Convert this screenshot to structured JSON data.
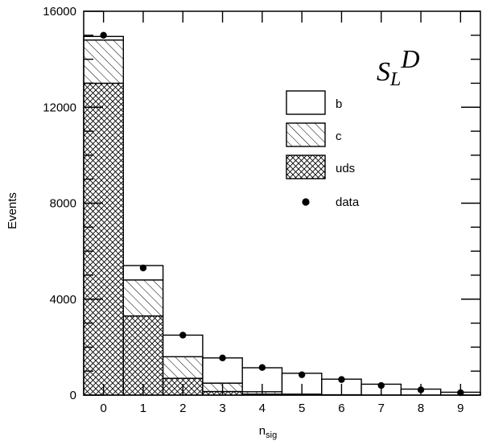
{
  "chart_data": {
    "type": "bar",
    "stacked": true,
    "histogram": true,
    "title": "",
    "corner_label": {
      "main": "S",
      "sub": "L",
      "sup": "D"
    },
    "xlabel": {
      "main": "n",
      "sub": "sig"
    },
    "ylabel": "Events",
    "categories": [
      "0",
      "1",
      "2",
      "3",
      "4",
      "5",
      "6",
      "7",
      "8",
      "9"
    ],
    "x_ticks": [
      0,
      1,
      2,
      3,
      4,
      5,
      6,
      7,
      8,
      9
    ],
    "xlim": [
      -0.5,
      9.5
    ],
    "ylim": [
      0,
      16000
    ],
    "y_ticks": [
      0,
      4000,
      8000,
      12000,
      16000
    ],
    "grid": false,
    "legend_position": "top-right",
    "series": [
      {
        "name": "uds",
        "pattern": "crosshatch",
        "values": [
          13000,
          3300,
          700,
          150,
          40,
          10,
          5,
          0,
          0,
          0
        ]
      },
      {
        "name": "c",
        "pattern": "hatch",
        "values": [
          1800,
          1500,
          900,
          350,
          100,
          30,
          10,
          5,
          0,
          0
        ]
      },
      {
        "name": "b",
        "pattern": "open",
        "values": [
          150,
          600,
          900,
          1050,
          1000,
          870,
          650,
          450,
          250,
          120
        ]
      }
    ],
    "data_points": {
      "name": "data",
      "x": [
        0,
        1,
        2,
        3,
        4,
        5,
        6,
        7,
        8,
        9
      ],
      "y": [
        15000,
        5300,
        2500,
        1550,
        1150,
        850,
        650,
        400,
        220,
        100
      ]
    }
  }
}
